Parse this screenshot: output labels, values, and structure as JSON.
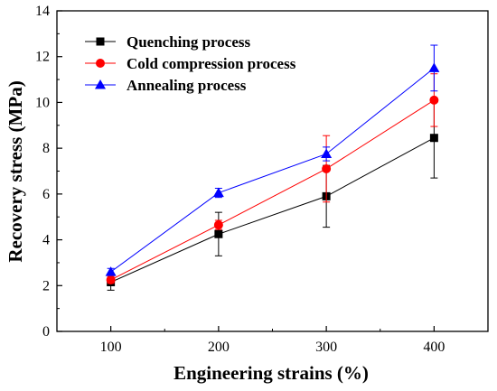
{
  "chart_data": {
    "type": "line",
    "xlabel": "Engineering strains (%)",
    "ylabel": "Recovery stress (MPa)",
    "xlim": [
      50,
      450
    ],
    "ylim": [
      0,
      14
    ],
    "x_ticks": [
      100,
      200,
      300,
      400
    ],
    "y_ticks": [
      0,
      2,
      4,
      6,
      8,
      10,
      12,
      14
    ],
    "x": [
      100,
      200,
      300,
      400
    ],
    "legend_position": "top-left",
    "grid": false,
    "series": [
      {
        "name": "Quenching process",
        "color": "#000000",
        "marker": "square",
        "values": [
          2.15,
          4.25,
          5.9,
          8.45
        ],
        "errors": [
          0.35,
          0.95,
          1.35,
          1.75
        ]
      },
      {
        "name": "Cold compression process",
        "color": "#ff0000",
        "marker": "circle",
        "values": [
          2.25,
          4.65,
          7.1,
          10.1
        ],
        "errors": [
          0.15,
          0.2,
          1.45,
          1.15
        ]
      },
      {
        "name": "Annealing process",
        "color": "#0000ff",
        "marker": "triangle",
        "values": [
          2.6,
          6.05,
          7.75,
          11.5
        ],
        "errors": [
          0.15,
          0.2,
          0.3,
          1.0
        ]
      }
    ]
  }
}
